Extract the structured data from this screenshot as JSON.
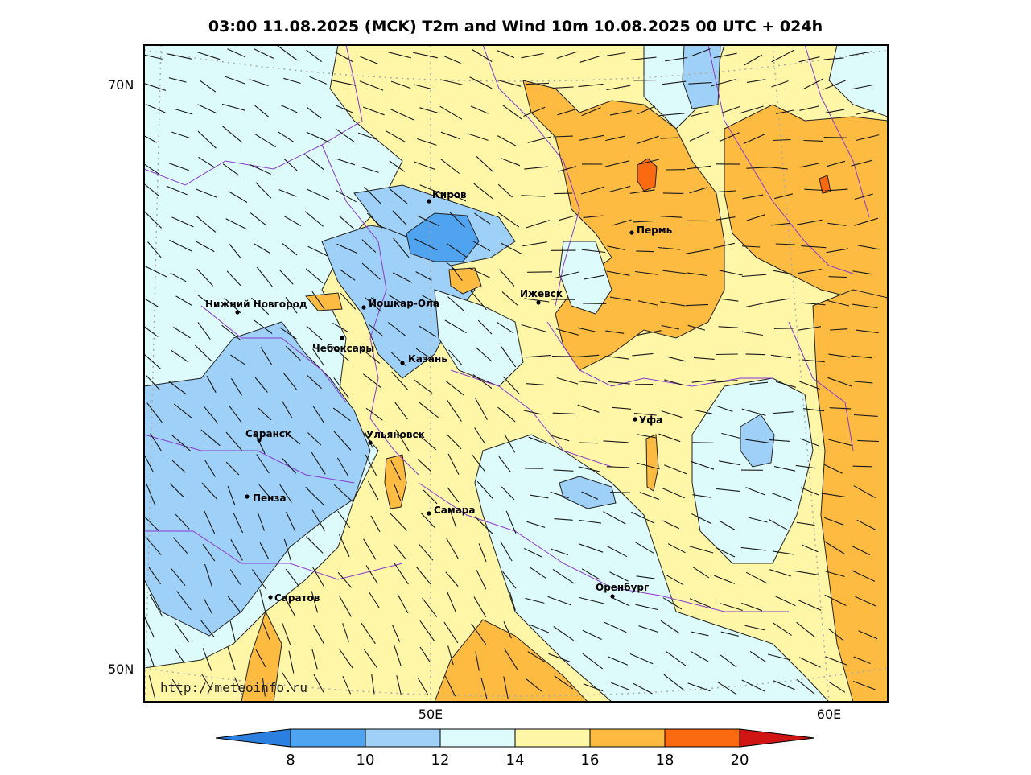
{
  "title": "03:00 11.08.2025 (MCK) T2m and Wind 10m 10.08.2025 00 UTC + 024h",
  "lat_labels": [
    "70N",
    "50N"
  ],
  "lon_labels": [
    "50E",
    "60E"
  ],
  "source": "http://meteoinfo.ru",
  "cities": [
    {
      "id": "kirov",
      "name": "Киров"
    },
    {
      "id": "perm",
      "name": "Пермь"
    },
    {
      "id": "nizhny",
      "name": "Нижний Новгород"
    },
    {
      "id": "yoshkar",
      "name": "Йошкар-Ола"
    },
    {
      "id": "izhevsk",
      "name": "Ижевск"
    },
    {
      "id": "cheboksary",
      "name": "Чебоксары"
    },
    {
      "id": "kazan",
      "name": "Казань"
    },
    {
      "id": "ufa",
      "name": "Уфа"
    },
    {
      "id": "saransk",
      "name": "Саранск"
    },
    {
      "id": "ulyanovsk",
      "name": "Ульяновск"
    },
    {
      "id": "penza",
      "name": "Пенза"
    },
    {
      "id": "samara",
      "name": "Самара"
    },
    {
      "id": "orenburg",
      "name": "Оренбург"
    },
    {
      "id": "saratov",
      "name": "Саратов"
    }
  ],
  "legend": {
    "ticks": [
      "8",
      "10",
      "12",
      "14",
      "16",
      "18",
      "20"
    ],
    "colors": {
      "below8": "#2b7fe0",
      "c8_10": "#4fa3ef",
      "c10_12": "#9fd0f7",
      "c12_14": "#ddfbfb",
      "c14_16": "#fff6a8",
      "c16_18": "#fdbb42",
      "c18_20": "#fb6a10",
      "above20": "#d01515"
    }
  }
}
